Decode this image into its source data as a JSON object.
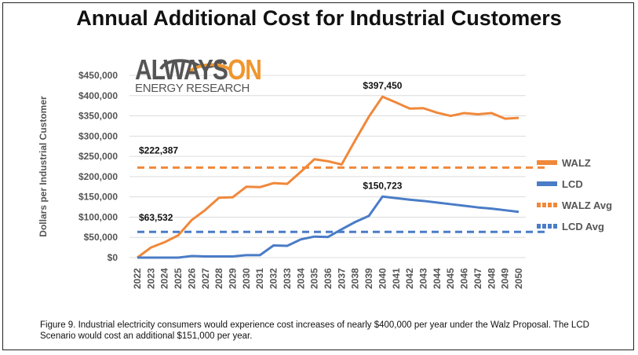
{
  "chart_data": {
    "type": "line",
    "title": "Annual Additional Cost for Industrial Customers",
    "xlabel": "",
    "ylabel": "Dollars per Industrial Customer",
    "ylim": [
      0,
      450000
    ],
    "yticks": [
      0,
      50000,
      100000,
      150000,
      200000,
      250000,
      300000,
      350000,
      400000,
      450000
    ],
    "ytick_labels": [
      "$0",
      "$50,000",
      "$100,000",
      "$150,000",
      "$200,000",
      "$250,000",
      "$300,000",
      "$350,000",
      "$400,000",
      "$450,000"
    ],
    "x": [
      2022,
      2023,
      2024,
      2025,
      2026,
      2027,
      2028,
      2029,
      2030,
      2031,
      2032,
      2033,
      2034,
      2035,
      2036,
      2037,
      2038,
      2039,
      2040,
      2041,
      2042,
      2043,
      2044,
      2045,
      2046,
      2047,
      2048,
      2049,
      2050
    ],
    "grid": true,
    "legend_position": "right",
    "series": [
      {
        "name": "WALZ",
        "style": "solid",
        "color": "#f0883a",
        "values": [
          0,
          25000,
          38000,
          55000,
          93000,
          118000,
          148000,
          149000,
          175000,
          174000,
          184000,
          182000,
          212000,
          243000,
          238000,
          230000,
          290000,
          348000,
          397450,
          383000,
          368000,
          369000,
          358000,
          350000,
          357000,
          354000,
          357000,
          343000,
          345000
        ]
      },
      {
        "name": "LCD",
        "style": "solid",
        "color": "#4a7cc7",
        "values": [
          0,
          0,
          0,
          0,
          4000,
          3000,
          3000,
          3000,
          6000,
          6000,
          30000,
          29000,
          45000,
          52000,
          51000,
          70000,
          88000,
          103000,
          150723,
          147000,
          143000,
          140000,
          136000,
          132000,
          128000,
          124000,
          121000,
          117000,
          113000
        ]
      },
      {
        "name": "WALZ Avg",
        "style": "dashed",
        "color": "#f0883a",
        "value": 222387
      },
      {
        "name": "LCD Avg",
        "style": "dashed",
        "color": "#4a7cc7",
        "value": 63532
      }
    ],
    "annotations": [
      {
        "text": "$397,450",
        "x": 2040,
        "y": 397450
      },
      {
        "text": "$150,723",
        "x": 2040,
        "y": 150723
      },
      {
        "text": "$222,387",
        "x": 2022,
        "y": 222387
      },
      {
        "text": "$63,532",
        "x": 2022,
        "y": 63532
      }
    ]
  },
  "logo": {
    "part1": "ALWAYS",
    "part2": "ON",
    "sub": "ENERGY RESEARCH"
  },
  "caption": "Figure 9. Industrial electricity consumers would experience cost increases of nearly $400,000 per year under the Walz Proposal. The LCD Scenario would cost an additional $151,000 per year."
}
